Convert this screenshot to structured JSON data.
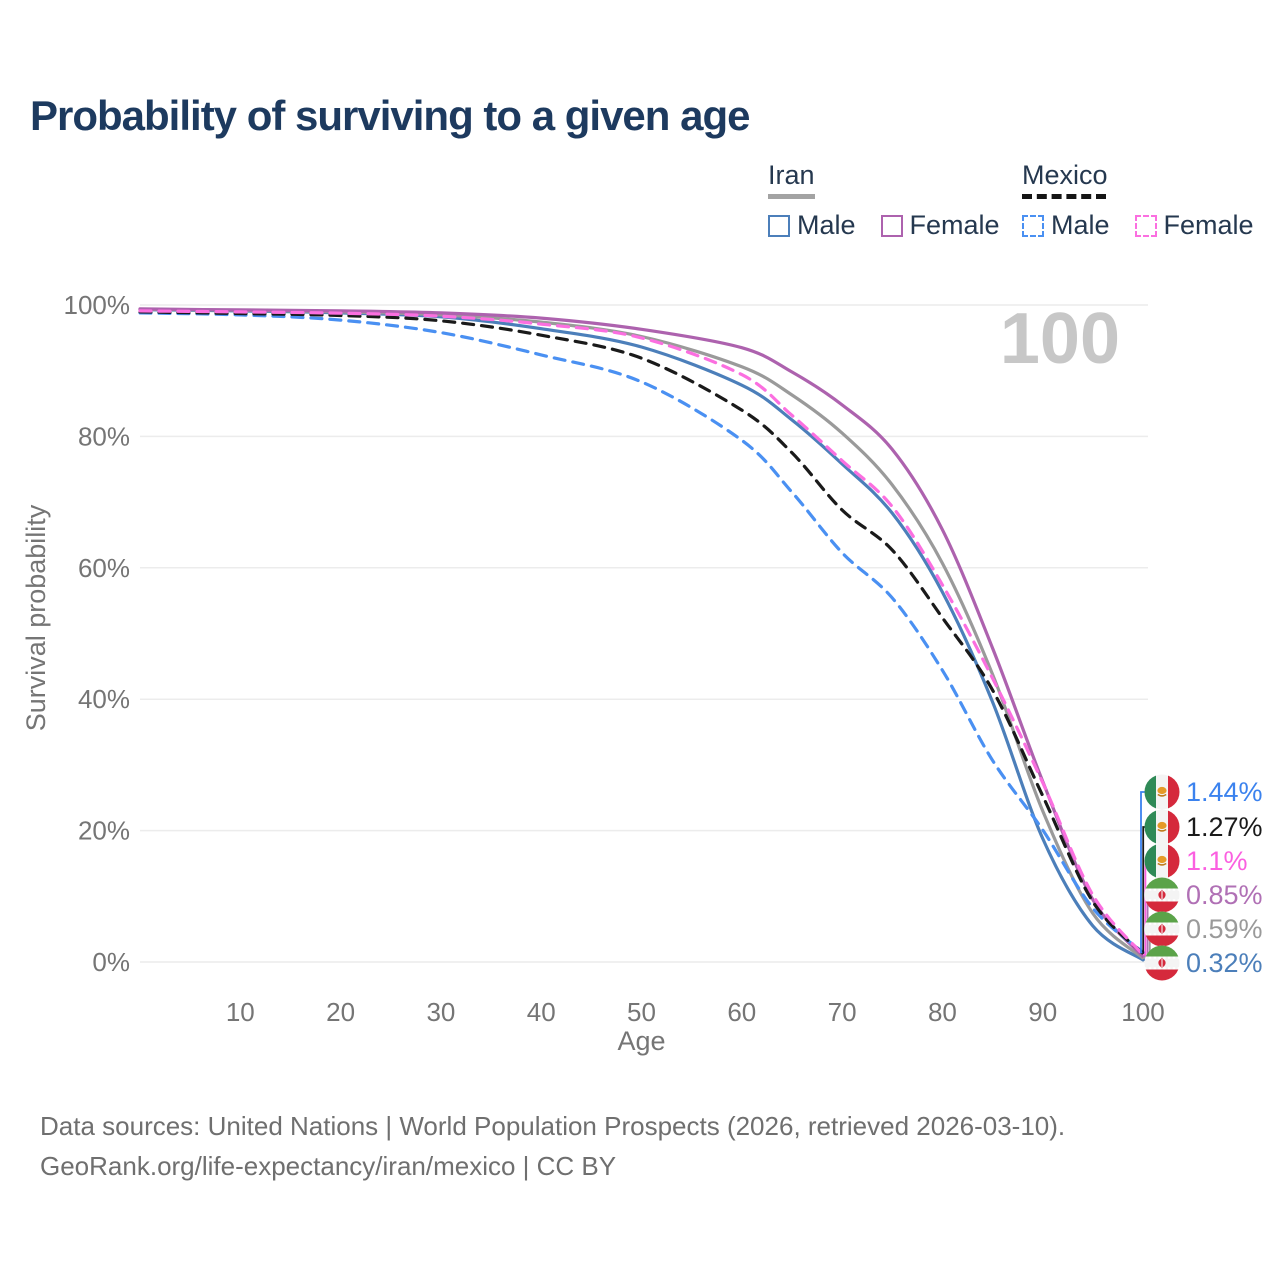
{
  "title": "Probability of surviving to a given age",
  "watermark_age": "100",
  "legend": {
    "iran": {
      "label": "Iran",
      "male": "Male",
      "female": "Female"
    },
    "mexico": {
      "label": "Mexico",
      "male": "Male",
      "female": "Female"
    }
  },
  "colors": {
    "title_text": "#1d3a5f",
    "legend_text": "#25384f",
    "axis_text": "#757575",
    "grid": "#ececec",
    "watermark": "#c7c7c7",
    "footer_text": "#6f6f6f",
    "iran_underline": "#a3a3a3",
    "mexico_underline": "#151515"
  },
  "chart_data": {
    "type": "line",
    "title": "Probability of surviving to a given age",
    "xlabel": "Age",
    "ylabel": "Survival probability",
    "xlim": [
      0,
      100
    ],
    "ylim": [
      0,
      100
    ],
    "grid": "horizontal",
    "legend_position": "top-right",
    "x_ticks": [
      10,
      20,
      30,
      40,
      50,
      60,
      70,
      80,
      90,
      100
    ],
    "y_ticks": [
      {
        "v": 100,
        "label": "100%"
      },
      {
        "v": 80,
        "label": "80%"
      },
      {
        "v": 60,
        "label": "60%"
      },
      {
        "v": 40,
        "label": "40%"
      },
      {
        "v": 20,
        "label": "20%"
      },
      {
        "v": 0,
        "label": "0%"
      }
    ],
    "ages": [
      0,
      10,
      20,
      30,
      40,
      50,
      60,
      65,
      70,
      75,
      80,
      85,
      90,
      95,
      100
    ],
    "series": [
      {
        "id": "iran_male",
        "name": "Iran Male",
        "country": "Iran",
        "sex": "Male",
        "style": "solid",
        "color": "#4c7fba",
        "values": [
          99.3,
          99.1,
          98.8,
          98.2,
          96.4,
          93.6,
          87.8,
          82.5,
          75.8,
          68.3,
          56.3,
          39.6,
          18.8,
          5.5,
          0.32
        ]
      },
      {
        "id": "iran_total",
        "name": "Iran",
        "country": "Iran",
        "sex": "Both",
        "style": "solid",
        "color": "#9a9a9a",
        "values": [
          99.35,
          99.2,
          98.95,
          98.5,
          97.4,
          95.2,
          90.6,
          86.3,
          80.5,
          72.6,
          60.7,
          43.8,
          23.0,
          7.4,
          0.59
        ]
      },
      {
        "id": "iran_female",
        "name": "Iran Female",
        "country": "Iran",
        "sex": "Female",
        "style": "solid",
        "color": "#ad62ae",
        "values": [
          99.4,
          99.25,
          99.1,
          98.8,
          98.0,
          96.3,
          93.5,
          89.8,
          84.8,
          78.0,
          65.8,
          47.8,
          27.5,
          9.5,
          0.85
        ]
      },
      {
        "id": "mexico_male",
        "name": "Mexico Male",
        "country": "Mexico",
        "sex": "Male",
        "style": "dashed",
        "color": "#4a90f2",
        "values": [
          98.8,
          98.5,
          97.7,
          95.8,
          92.4,
          88.3,
          79.4,
          71.5,
          62.3,
          55.4,
          44.4,
          30.7,
          20.1,
          8.2,
          1.44
        ]
      },
      {
        "id": "mexico_total",
        "name": "Mexico",
        "country": "Mexico",
        "sex": "Both",
        "style": "dashed",
        "color": "#1a1a1a",
        "values": [
          98.95,
          98.7,
          98.4,
          97.6,
          95.4,
          91.9,
          84.0,
          77.5,
          68.8,
          62.7,
          52.4,
          41.4,
          25.3,
          9.2,
          1.27
        ]
      },
      {
        "id": "mexico_female",
        "name": "Mexico Female",
        "country": "Mexico",
        "sex": "Female",
        "style": "dashed",
        "color": "#fb6fe0",
        "values": [
          99.1,
          98.95,
          98.75,
          98.3,
          97.1,
          95.0,
          89.4,
          83.2,
          76.3,
          69.3,
          57.4,
          43.2,
          27.3,
          10.2,
          1.1
        ]
      }
    ]
  },
  "end_labels": [
    {
      "series": "mexico_male",
      "flag": "mexico",
      "value": "1.44%",
      "color": "#3b82ee"
    },
    {
      "series": "mexico_total",
      "flag": "mexico",
      "value": "1.27%",
      "color": "#1a1a1a"
    },
    {
      "series": "mexico_female",
      "flag": "mexico",
      "value": "1.1%",
      "color": "#fb5fe0"
    },
    {
      "series": "iran_female",
      "flag": "iran",
      "value": "0.85%",
      "color": "#b070b5"
    },
    {
      "series": "iran_total",
      "flag": "iran",
      "value": "0.59%",
      "color": "#9a9a9a"
    },
    {
      "series": "iran_male",
      "flag": "iran",
      "value": "0.32%",
      "color": "#4c7fba"
    }
  ],
  "footer": {
    "line1": "Data sources: United Nations | World Population Prospects (2026, retrieved 2026-03-10).",
    "line2": "GeoRank.org/life-expectancy/iran/mexico | CC BY"
  }
}
